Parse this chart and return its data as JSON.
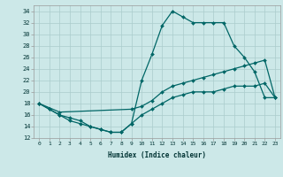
{
  "xlabel": "Humidex (Indice chaleur)",
  "ylabel": "",
  "bg_color": "#cce8e8",
  "grid_color": "#aacccc",
  "line_color": "#006666",
  "xlim": [
    -0.5,
    23.5
  ],
  "ylim": [
    12,
    35
  ],
  "xticks": [
    0,
    1,
    2,
    3,
    4,
    5,
    6,
    7,
    8,
    9,
    10,
    11,
    12,
    13,
    14,
    15,
    16,
    17,
    18,
    19,
    20,
    21,
    22,
    23
  ],
  "yticks": [
    12,
    14,
    16,
    18,
    20,
    22,
    24,
    26,
    28,
    30,
    32,
    34
  ],
  "line_max": {
    "x": [
      0,
      1,
      2,
      3,
      4,
      5,
      6,
      7,
      8,
      9,
      10,
      11,
      12,
      13,
      14,
      15,
      16,
      17,
      18,
      19,
      20,
      21,
      22,
      23
    ],
    "y": [
      18,
      17,
      16,
      15.5,
      15,
      14,
      13.5,
      13,
      13,
      14.5,
      22,
      26.5,
      31.5,
      34,
      33,
      32,
      32,
      32,
      32,
      28,
      26,
      23.5,
      19,
      19
    ]
  },
  "line_avg": {
    "x": [
      0,
      2,
      9,
      10,
      11,
      12,
      13,
      14,
      15,
      16,
      17,
      18,
      19,
      20,
      21,
      22,
      23
    ],
    "y": [
      18,
      16.5,
      17,
      17.5,
      18.5,
      20,
      21,
      21.5,
      22,
      22.5,
      23,
      23.5,
      24,
      24.5,
      25,
      25.5,
      19
    ]
  },
  "line_min": {
    "x": [
      0,
      1,
      2,
      3,
      4,
      5,
      6,
      7,
      8,
      9,
      10,
      11,
      12,
      13,
      14,
      15,
      16,
      17,
      18,
      19,
      20,
      21,
      22,
      23
    ],
    "y": [
      18,
      17,
      16,
      15,
      14.5,
      14,
      13.5,
      13,
      13,
      14.5,
      16,
      17,
      18,
      19,
      19.5,
      20,
      20,
      20,
      20.5,
      21,
      21,
      21,
      21.5,
      19
    ]
  }
}
